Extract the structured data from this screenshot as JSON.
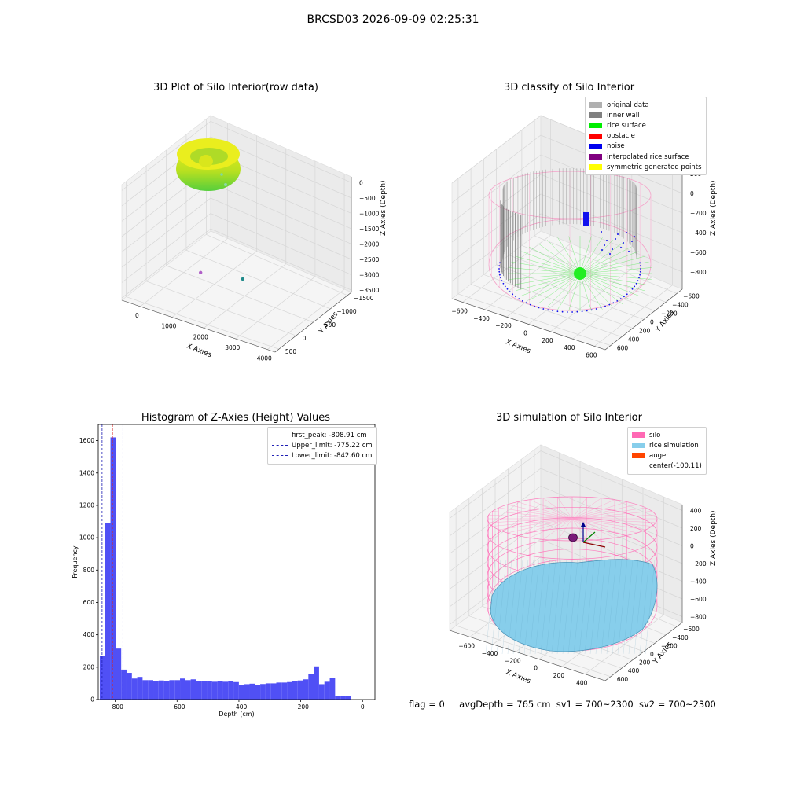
{
  "suptitle": "BRCSD03 2026-09-09 02:25:31",
  "chart_data": [
    {
      "type": "scatter",
      "title": "3D Plot of Silo Interior(row data)",
      "xlabel": "X Axies",
      "ylabel": "Y Axies",
      "zlabel": "Z Axies (Depth)",
      "x_ticks": [
        "0",
        "1000",
        "2000",
        "3000",
        "4000"
      ],
      "y_ticks": [
        "500",
        "0",
        "−500",
        "−1000",
        "−1500"
      ],
      "z_ticks": [
        "0",
        "−500",
        "−1000",
        "−1500",
        "−2000",
        "−2500",
        "−3000",
        "−3500"
      ],
      "outliers": [
        {
          "x": 3050,
          "y": -1180,
          "z": -3400,
          "color": "#1f8a8a"
        },
        {
          "x": 2300,
          "y": -800,
          "z": -3200,
          "color": "#b060c8"
        }
      ]
    },
    {
      "type": "scatter",
      "title": "3D classify of Silo Interior",
      "xlabel": "X Axies",
      "ylabel": "Y Axies",
      "zlabel": "Z Axies (Depth)",
      "x_ticks": [
        "−600",
        "−400",
        "−200",
        "0",
        "200",
        "400",
        "600"
      ],
      "y_ticks": [
        "600",
        "400",
        "200",
        "0",
        "−200",
        "−400",
        "−600"
      ],
      "z_ticks": [
        "200",
        "0",
        "−200",
        "−400",
        "−600",
        "−800"
      ],
      "z_top_partial": "00",
      "legend": [
        {
          "label": "original data",
          "color": "#b0b0b0"
        },
        {
          "label": "inner wall",
          "color": "#808080"
        },
        {
          "label": "rice surface",
          "color": "#00ee00"
        },
        {
          "label": "obstacle",
          "color": "#ff0000"
        },
        {
          "label": "noise",
          "color": "#0000ee"
        },
        {
          "label": "interpolated rice surface",
          "color": "#800080"
        },
        {
          "label": "symmetric generated points",
          "color": "#ffff00"
        }
      ]
    },
    {
      "type": "bar",
      "title": "Histogram of Z-Axies (Height) Values",
      "xlabel": "Depth (cm)",
      "ylabel": "Frequency",
      "xlim": [
        -855,
        40
      ],
      "ylim": [
        0,
        1700
      ],
      "x_ticks": [
        -800,
        -600,
        -400,
        -200,
        0
      ],
      "x_tick_labels": [
        "−800",
        "−600",
        "−400",
        "−200",
        "0"
      ],
      "y_ticks": [
        0,
        200,
        400,
        600,
        800,
        1000,
        1200,
        1400,
        1600
      ],
      "y_tick_labels": [
        "0",
        "200",
        "400",
        "600",
        "800",
        "1000",
        "1200",
        "1400",
        "1600"
      ],
      "bin_start": -850,
      "bin_width": 17.3,
      "values": [
        270,
        1090,
        1620,
        315,
        185,
        165,
        130,
        140,
        120,
        120,
        115,
        118,
        112,
        120,
        120,
        130,
        120,
        125,
        115,
        115,
        115,
        110,
        115,
        110,
        112,
        108,
        90,
        95,
        98,
        92,
        96,
        100,
        100,
        105,
        105,
        108,
        112,
        118,
        125,
        160,
        205,
        95,
        110,
        135,
        20,
        20,
        22
      ],
      "bar_color": "#5050f5",
      "vlines": [
        {
          "x": -808.91,
          "label": "first_peak: -808.91 cm",
          "color": "#d62728"
        },
        {
          "x": -775.22,
          "label": "Upper_limit: -775.22 cm",
          "color": "#1f1fb4"
        },
        {
          "x": -842.6,
          "label": "Lower_limit: -842.60 cm",
          "color": "#1f1fb4"
        }
      ]
    },
    {
      "type": "scatter",
      "title": "3D simulation of Silo Interior",
      "xlabel": "X Axies",
      "ylabel": "Y Axies",
      "zlabel": "Z Axies (Depth)",
      "x_ticks": [
        "−600",
        "−400",
        "−200",
        "0",
        "200",
        "400"
      ],
      "y_ticks": [
        "600",
        "400",
        "200",
        "0",
        "−200",
        "−400",
        "−600"
      ],
      "z_ticks": [
        "400",
        "200",
        "0",
        "−200",
        "−400",
        "−600",
        "−800"
      ],
      "legend": [
        {
          "label": "silo",
          "color": "#ff69b4"
        },
        {
          "label": "rice simulation",
          "color": "#87ceeb"
        },
        {
          "label": "auger",
          "color": "#ff4500"
        },
        {
          "label": "center(-100,11)",
          "color": ""
        }
      ]
    }
  ],
  "footer": {
    "flag": "flag = 0",
    "avg_depth": "avgDepth = 765 cm",
    "sv1": "sv1 = 700~2300",
    "sv2": "sv2 = 700~2300"
  }
}
